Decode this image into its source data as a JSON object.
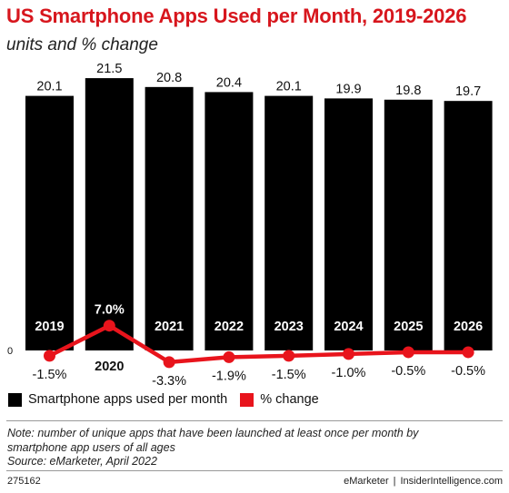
{
  "title": "US Smartphone Apps Used per Month, 2019-2026",
  "subtitle": "units and % change",
  "colors": {
    "bar": "#000000",
    "line": "#e8141c",
    "title": "#d7161d"
  },
  "chart_data": {
    "type": "bar",
    "categories": [
      "2019",
      "2020",
      "2021",
      "2022",
      "2023",
      "2024",
      "2025",
      "2026"
    ],
    "series": [
      {
        "name": "Smartphone apps used per month",
        "type": "bar",
        "values": [
          20.1,
          21.5,
          20.8,
          20.4,
          20.1,
          19.9,
          19.8,
          19.7
        ],
        "labels": [
          "20.1",
          "21.5",
          "20.8",
          "20.4",
          "20.1",
          "19.9",
          "19.8",
          "19.7"
        ]
      },
      {
        "name": "% change",
        "type": "line",
        "values": [
          -1.5,
          7.0,
          -3.3,
          -1.9,
          -1.5,
          -1.0,
          -0.5,
          -0.5
        ],
        "labels": [
          "-1.5%",
          "7.0%",
          "-3.3%",
          "-1.9%",
          "-1.5%",
          "-1.0%",
          "-0.5%",
          "-0.5%"
        ]
      }
    ],
    "zero_label": "0",
    "grid": false,
    "legend_position": "bottom-left"
  },
  "legend": [
    {
      "label": "Smartphone apps used per month",
      "color": "#000000"
    },
    {
      "label": "% change",
      "color": "#e8141c"
    }
  ],
  "note": {
    "line1": "Note: number of unique apps that have been launched at least once per month by",
    "line2": "smartphone app users of all ages",
    "line3": "Source: eMarketer, April 2022"
  },
  "footer": {
    "id": "275162",
    "brand1": "eMarketer",
    "separator": "|",
    "brand2": "InsiderIntelligence.com"
  }
}
